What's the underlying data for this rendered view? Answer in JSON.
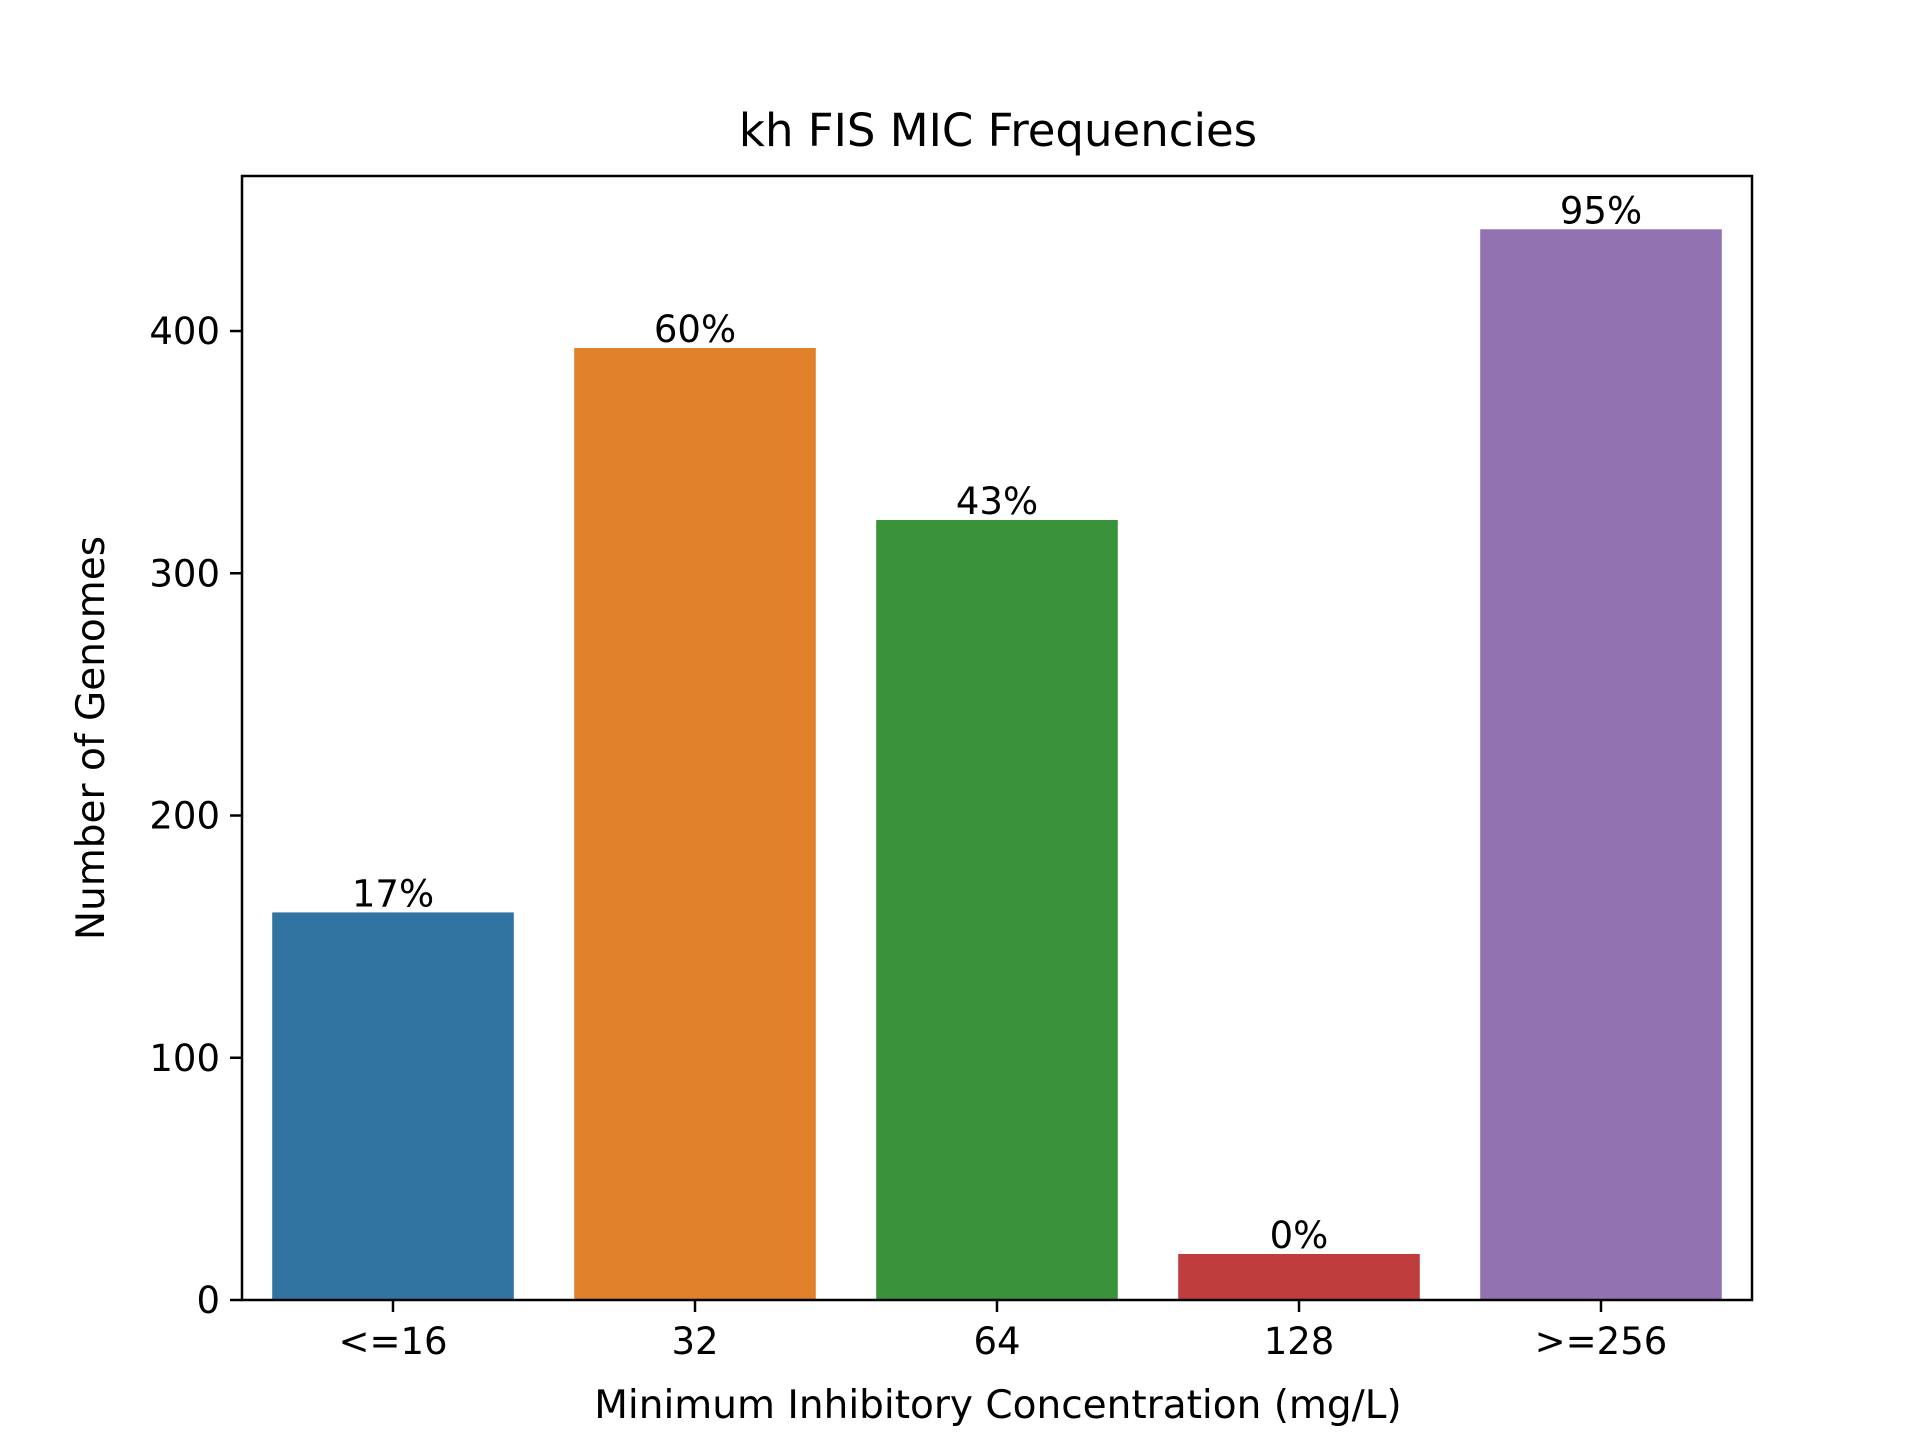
{
  "chart_data": {
    "type": "bar",
    "title": "kh FIS MIC Frequencies",
    "xlabel": "Minimum Inhibitory Concentration (mg/L)",
    "ylabel": "Number of Genomes",
    "categories": [
      "<=16",
      "32",
      "64",
      "128",
      ">=256"
    ],
    "values": [
      160,
      393,
      322,
      19,
      442
    ],
    "data_labels": [
      "17%",
      "60%",
      "43%",
      "0%",
      "95%"
    ],
    "colors": [
      "#3274a1",
      "#e1812c",
      "#3a923a",
      "#c03d3e",
      "#9372b2"
    ],
    "ylim": [
      0,
      464
    ],
    "yticks": [
      0,
      100,
      200,
      300,
      400
    ],
    "grid": false,
    "legend": "none"
  }
}
